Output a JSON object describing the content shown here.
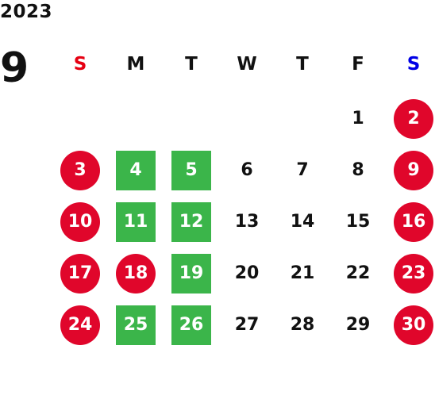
{
  "calendar": {
    "year": "2023",
    "month": "9",
    "weekdays": [
      {
        "label": "S",
        "color": "#e60012"
      },
      {
        "label": "M",
        "color": "#111111"
      },
      {
        "label": "T",
        "color": "#111111"
      },
      {
        "label": "W",
        "color": "#111111"
      },
      {
        "label": "T",
        "color": "#111111"
      },
      {
        "label": "F",
        "color": "#111111"
      },
      {
        "label": "S",
        "color": "#0000e6"
      }
    ],
    "colors": {
      "holiday_red": "#e0062b",
      "highlight_green": "#3bb54a",
      "normal_text": "#111111"
    },
    "days": [
      {
        "label": "1",
        "col": 5,
        "row": 0,
        "mark": "none"
      },
      {
        "label": "2",
        "col": 6,
        "row": 0,
        "mark": "circle"
      },
      {
        "label": "3",
        "col": 0,
        "row": 1,
        "mark": "circle"
      },
      {
        "label": "4",
        "col": 1,
        "row": 1,
        "mark": "square"
      },
      {
        "label": "5",
        "col": 2,
        "row": 1,
        "mark": "square"
      },
      {
        "label": "6",
        "col": 3,
        "row": 1,
        "mark": "none"
      },
      {
        "label": "7",
        "col": 4,
        "row": 1,
        "mark": "none"
      },
      {
        "label": "8",
        "col": 5,
        "row": 1,
        "mark": "none"
      },
      {
        "label": "9",
        "col": 6,
        "row": 1,
        "mark": "circle"
      },
      {
        "label": "10",
        "col": 0,
        "row": 2,
        "mark": "circle"
      },
      {
        "label": "11",
        "col": 1,
        "row": 2,
        "mark": "square"
      },
      {
        "label": "12",
        "col": 2,
        "row": 2,
        "mark": "square"
      },
      {
        "label": "13",
        "col": 3,
        "row": 2,
        "mark": "none"
      },
      {
        "label": "14",
        "col": 4,
        "row": 2,
        "mark": "none"
      },
      {
        "label": "15",
        "col": 5,
        "row": 2,
        "mark": "none"
      },
      {
        "label": "16",
        "col": 6,
        "row": 2,
        "mark": "circle"
      },
      {
        "label": "17",
        "col": 0,
        "row": 3,
        "mark": "circle"
      },
      {
        "label": "18",
        "col": 1,
        "row": 3,
        "mark": "circle"
      },
      {
        "label": "19",
        "col": 2,
        "row": 3,
        "mark": "square"
      },
      {
        "label": "20",
        "col": 3,
        "row": 3,
        "mark": "none"
      },
      {
        "label": "21",
        "col": 4,
        "row": 3,
        "mark": "none"
      },
      {
        "label": "22",
        "col": 5,
        "row": 3,
        "mark": "none"
      },
      {
        "label": "23",
        "col": 6,
        "row": 3,
        "mark": "circle"
      },
      {
        "label": "24",
        "col": 0,
        "row": 4,
        "mark": "circle"
      },
      {
        "label": "25",
        "col": 1,
        "row": 4,
        "mark": "square"
      },
      {
        "label": "26",
        "col": 2,
        "row": 4,
        "mark": "square"
      },
      {
        "label": "27",
        "col": 3,
        "row": 4,
        "mark": "none"
      },
      {
        "label": "28",
        "col": 4,
        "row": 4,
        "mark": "none"
      },
      {
        "label": "29",
        "col": 5,
        "row": 4,
        "mark": "none"
      },
      {
        "label": "30",
        "col": 6,
        "row": 4,
        "mark": "circle"
      }
    ]
  }
}
